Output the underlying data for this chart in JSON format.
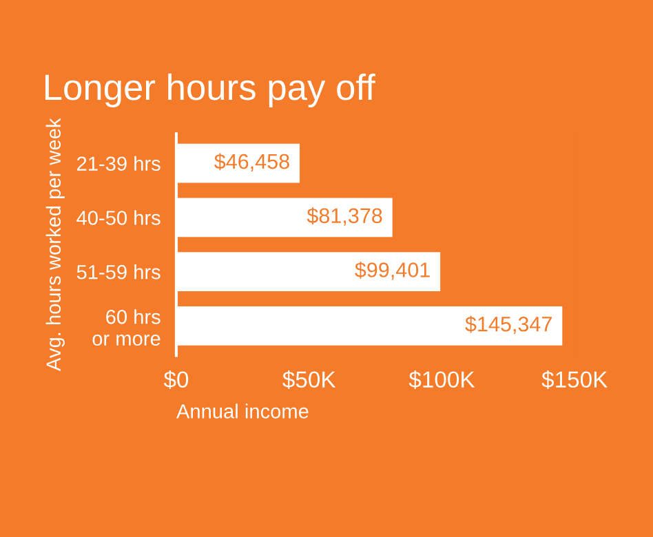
{
  "chart_data": {
    "type": "bar",
    "orientation": "horizontal",
    "title": "Longer hours pay off",
    "xlabel": "Annual income",
    "ylabel": "Avg. hours worked per week",
    "categories": [
      "21-39 hrs",
      "40-50 hrs",
      "51-59 hrs",
      "60 hrs\nor more"
    ],
    "values": [
      46458,
      81378,
      99401,
      145347
    ],
    "color": "#ffffff",
    "value_labels": [
      "$46,458",
      "$81,378",
      "$99,401",
      "$145,347"
    ],
    "xlim": [
      0,
      150000
    ],
    "xticks": [
      {
        "value": 0,
        "label": "$0"
      },
      {
        "value": 50000,
        "label": "$50K"
      },
      {
        "value": 100000,
        "label": "$100K"
      },
      {
        "value": 150000,
        "label": "$150K"
      }
    ],
    "grid": false,
    "legend": false
  }
}
